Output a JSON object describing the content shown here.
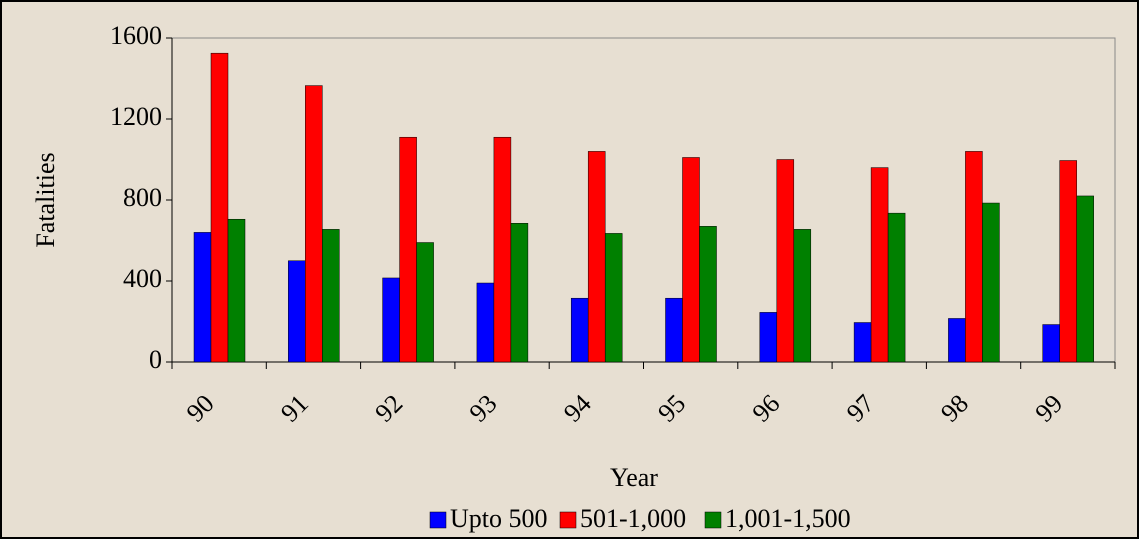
{
  "chart_data": {
    "type": "bar",
    "x_label": "Year",
    "y_label": "Fatalities",
    "categories": [
      "90",
      "91",
      "92",
      "93",
      "94",
      "95",
      "96",
      "97",
      "98",
      "99"
    ],
    "series": [
      {
        "name": "Upto 500",
        "color": "#0000ff",
        "values": [
          640,
          500,
          415,
          390,
          315,
          315,
          245,
          195,
          215,
          185
        ]
      },
      {
        "name": "501-1,000",
        "color": "#ff0000",
        "values": [
          1525,
          1365,
          1110,
          1110,
          1040,
          1010,
          1000,
          960,
          1040,
          995
        ]
      },
      {
        "name": "1,001-1,500",
        "color": "#008000",
        "values": [
          705,
          655,
          590,
          685,
          635,
          670,
          655,
          735,
          785,
          820
        ]
      }
    ],
    "ylim": [
      0,
      1600
    ],
    "yticks": [
      0,
      400,
      800,
      1200,
      1600
    ],
    "legend": "bottom"
  }
}
